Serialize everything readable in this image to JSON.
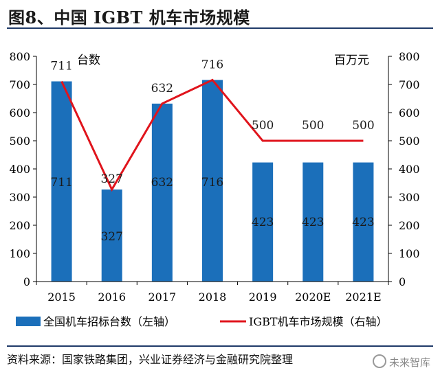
{
  "header": {
    "title": "图8、中国 IGBT 机车市场规模"
  },
  "source": {
    "text": "资料来源：国家铁路集团，兴业证券经济与金融研究院整理"
  },
  "watermark": {
    "text": "未来智库"
  },
  "colors": {
    "bar": "#1b6fba",
    "line": "#e0141c",
    "rule": "#1f3a68",
    "axis": "#000000"
  },
  "chart_data": {
    "type": "bar",
    "categories": [
      "2015",
      "2016",
      "2017",
      "2018",
      "2019",
      "2020E",
      "2021E"
    ],
    "series": [
      {
        "name": "全国机车招标台数（左轴）",
        "type": "bar",
        "axis": "left",
        "values": [
          711,
          327,
          632,
          716,
          423,
          423,
          423
        ]
      },
      {
        "name": "IGBT机车市场规模（右轴）",
        "type": "line",
        "axis": "right",
        "values": [
          711,
          327,
          632,
          716,
          500,
          500,
          500
        ]
      }
    ],
    "ylabel": "台数",
    "y2label": "百万元",
    "ylim": [
      0,
      800
    ],
    "y2lim": [
      0,
      800
    ],
    "yticks": [
      0,
      100,
      200,
      300,
      400,
      500,
      600,
      700,
      800
    ],
    "legend_position": "bottom",
    "grid": false
  }
}
